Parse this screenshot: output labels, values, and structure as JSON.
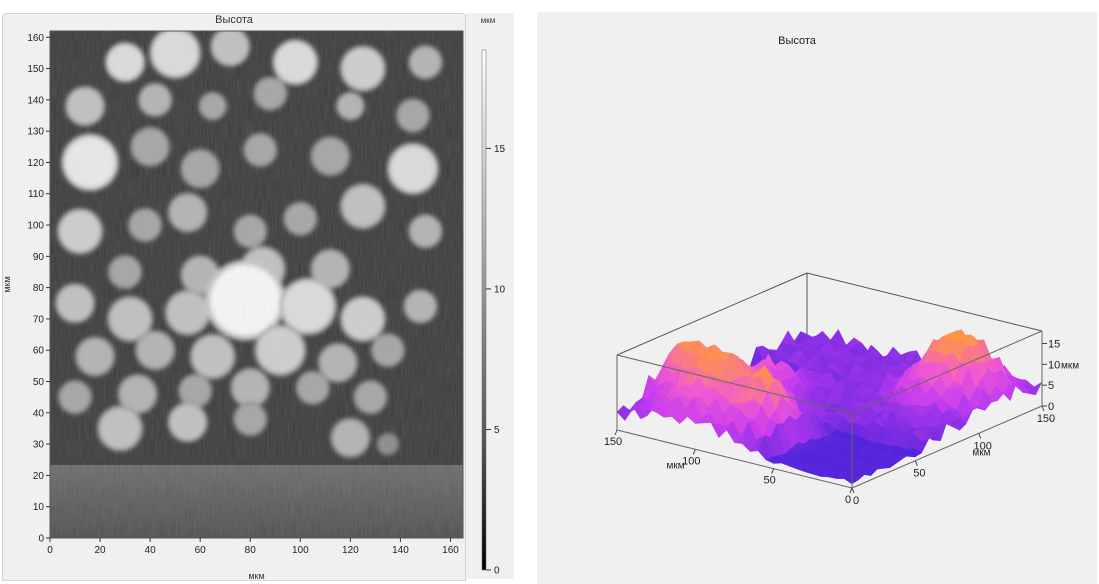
{
  "chart_data": [
    {
      "type": "heatmap",
      "title": "Высота",
      "xlabel": "мкм",
      "ylabel": "мкм",
      "xlim": [
        0,
        165
      ],
      "ylim": [
        0,
        162
      ],
      "x_ticks": [
        0,
        20,
        40,
        60,
        80,
        100,
        120,
        140,
        160
      ],
      "y_ticks": [
        0,
        10,
        20,
        30,
        40,
        50,
        60,
        70,
        80,
        90,
        100,
        110,
        120,
        130,
        140,
        150,
        160
      ],
      "colormap": "grayscale",
      "colorbar": {
        "label": "мкм",
        "range": [
          0,
          18.5
        ],
        "ticks": [
          0,
          5,
          10,
          15
        ]
      },
      "grains": [
        {
          "x": 30,
          "y": 152,
          "r": 7,
          "h": 16
        },
        {
          "x": 50,
          "y": 155,
          "r": 9,
          "h": 16
        },
        {
          "x": 72,
          "y": 157,
          "r": 7,
          "h": 14
        },
        {
          "x": 98,
          "y": 152,
          "r": 8,
          "h": 16
        },
        {
          "x": 125,
          "y": 150,
          "r": 8,
          "h": 15
        },
        {
          "x": 150,
          "y": 152,
          "r": 6,
          "h": 13
        },
        {
          "x": 14,
          "y": 138,
          "r": 7,
          "h": 14
        },
        {
          "x": 42,
          "y": 140,
          "r": 6,
          "h": 13
        },
        {
          "x": 65,
          "y": 138,
          "r": 5,
          "h": 12
        },
        {
          "x": 88,
          "y": 142,
          "r": 6,
          "h": 12
        },
        {
          "x": 120,
          "y": 138,
          "r": 5,
          "h": 13
        },
        {
          "x": 145,
          "y": 135,
          "r": 6,
          "h": 12
        },
        {
          "x": 16,
          "y": 120,
          "r": 10,
          "h": 17
        },
        {
          "x": 40,
          "y": 125,
          "r": 7,
          "h": 12
        },
        {
          "x": 60,
          "y": 118,
          "r": 7,
          "h": 12
        },
        {
          "x": 84,
          "y": 124,
          "r": 6,
          "h": 12
        },
        {
          "x": 112,
          "y": 122,
          "r": 7,
          "h": 12
        },
        {
          "x": 145,
          "y": 118,
          "r": 9,
          "h": 16
        },
        {
          "x": 12,
          "y": 98,
          "r": 8,
          "h": 15
        },
        {
          "x": 38,
          "y": 100,
          "r": 6,
          "h": 12
        },
        {
          "x": 55,
          "y": 104,
          "r": 7,
          "h": 13
        },
        {
          "x": 80,
          "y": 98,
          "r": 6,
          "h": 12
        },
        {
          "x": 100,
          "y": 102,
          "r": 6,
          "h": 12
        },
        {
          "x": 125,
          "y": 106,
          "r": 8,
          "h": 14
        },
        {
          "x": 150,
          "y": 98,
          "r": 6,
          "h": 13
        },
        {
          "x": 30,
          "y": 85,
          "r": 6,
          "h": 12
        },
        {
          "x": 60,
          "y": 84,
          "r": 7,
          "h": 13
        },
        {
          "x": 85,
          "y": 86,
          "r": 8,
          "h": 14
        },
        {
          "x": 112,
          "y": 86,
          "r": 7,
          "h": 13
        },
        {
          "x": 10,
          "y": 75,
          "r": 7,
          "h": 14
        },
        {
          "x": 32,
          "y": 70,
          "r": 8,
          "h": 14
        },
        {
          "x": 55,
          "y": 72,
          "r": 8,
          "h": 14
        },
        {
          "x": 78,
          "y": 76,
          "r": 14,
          "h": 18
        },
        {
          "x": 103,
          "y": 74,
          "r": 10,
          "h": 16
        },
        {
          "x": 125,
          "y": 70,
          "r": 8,
          "h": 15
        },
        {
          "x": 148,
          "y": 74,
          "r": 6,
          "h": 13
        },
        {
          "x": 18,
          "y": 58,
          "r": 7,
          "h": 13
        },
        {
          "x": 42,
          "y": 60,
          "r": 7,
          "h": 13
        },
        {
          "x": 65,
          "y": 58,
          "r": 8,
          "h": 14
        },
        {
          "x": 92,
          "y": 60,
          "r": 9,
          "h": 15
        },
        {
          "x": 115,
          "y": 56,
          "r": 7,
          "h": 13
        },
        {
          "x": 135,
          "y": 60,
          "r": 6,
          "h": 12
        },
        {
          "x": 10,
          "y": 45,
          "r": 6,
          "h": 12
        },
        {
          "x": 35,
          "y": 46,
          "r": 7,
          "h": 13
        },
        {
          "x": 58,
          "y": 47,
          "r": 6,
          "h": 12
        },
        {
          "x": 80,
          "y": 48,
          "r": 7,
          "h": 13
        },
        {
          "x": 105,
          "y": 48,
          "r": 6,
          "h": 12
        },
        {
          "x": 128,
          "y": 45,
          "r": 6,
          "h": 12
        },
        {
          "x": 28,
          "y": 35,
          "r": 8,
          "h": 14
        },
        {
          "x": 55,
          "y": 37,
          "r": 7,
          "h": 14
        },
        {
          "x": 80,
          "y": 38,
          "r": 6,
          "h": 12
        },
        {
          "x": 120,
          "y": 32,
          "r": 7,
          "h": 13
        },
        {
          "x": 135,
          "y": 30,
          "r": 4,
          "h": 10
        }
      ]
    },
    {
      "type": "surface3d",
      "title": "Высота",
      "xlabel": "мкм",
      "ylabel": "мкм",
      "zlabel": "мкм",
      "x_ticks": [
        0,
        50,
        100,
        150
      ],
      "y_ticks": [
        0,
        50,
        100,
        150
      ],
      "z_ticks": [
        0,
        5,
        10,
        15
      ],
      "zlim": [
        0,
        18
      ],
      "colors": {
        "low": "#3a1fd6",
        "mid": "#c43cf0",
        "high_pink": "#f25ad0",
        "peak": "#ff9a3c"
      }
    }
  ]
}
